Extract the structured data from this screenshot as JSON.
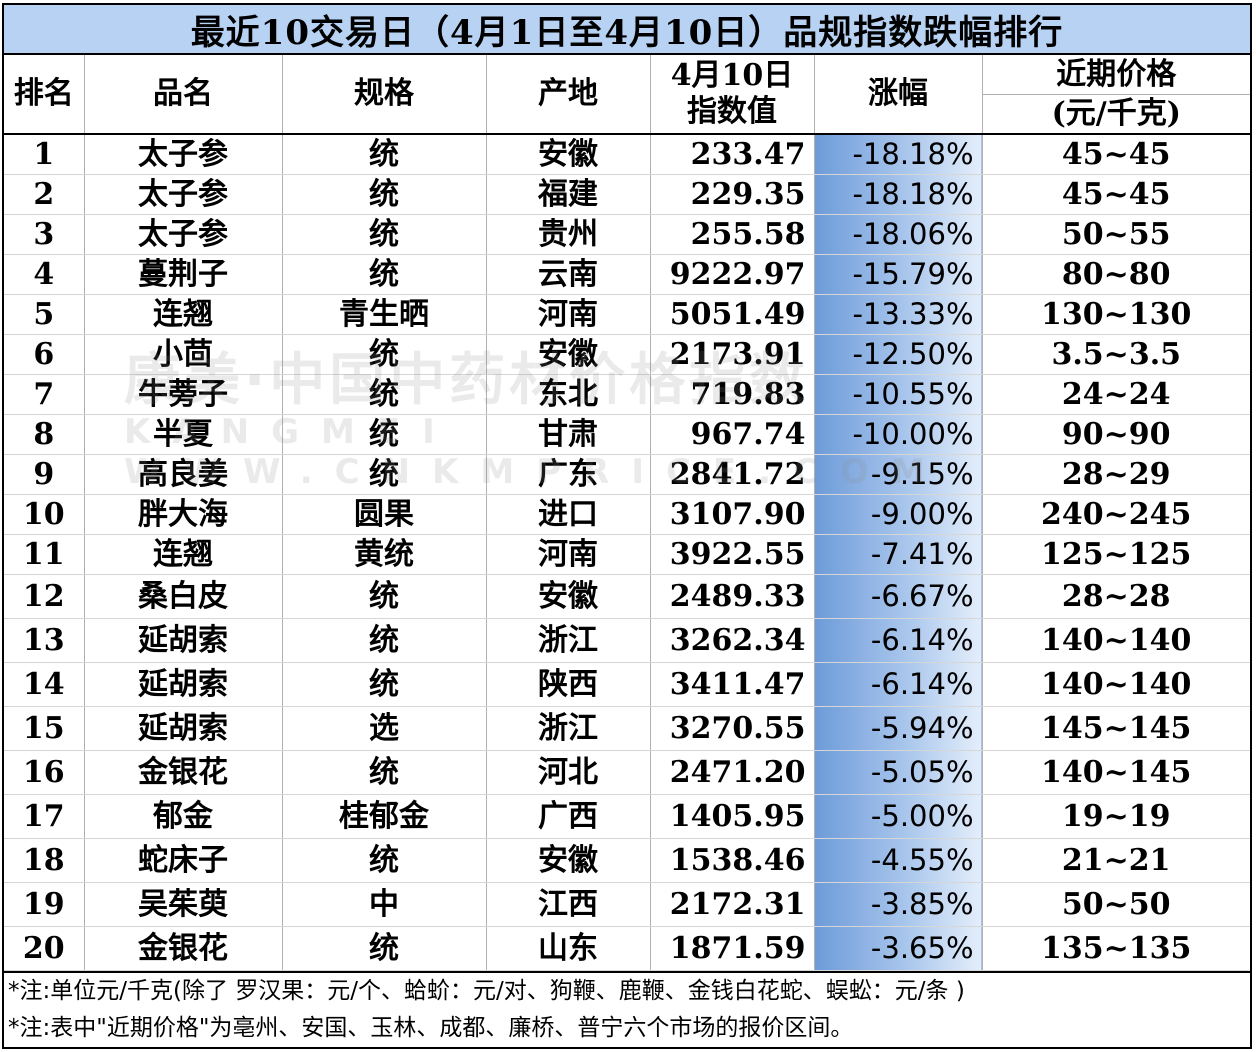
{
  "title": "最近10交易日（4月1日至4月10日）品规指数跌幅排行",
  "headers": {
    "rank": "排名",
    "name": "品名",
    "spec": "规格",
    "origin": "产地",
    "index_line1": "4月10日",
    "index_line2": "指数值",
    "change": "涨幅",
    "price_line1": "近期价格",
    "price_line2": "(元/千克)"
  },
  "rows": [
    {
      "rank": "1",
      "name": "太子参",
      "spec": "统",
      "origin": "安徽",
      "index": "233.47",
      "change": "-18.18%",
      "price": "45~45"
    },
    {
      "rank": "2",
      "name": "太子参",
      "spec": "统",
      "origin": "福建",
      "index": "229.35",
      "change": "-18.18%",
      "price": "45~45"
    },
    {
      "rank": "3",
      "name": "太子参",
      "spec": "统",
      "origin": "贵州",
      "index": "255.58",
      "change": "-18.06%",
      "price": "50~55"
    },
    {
      "rank": "4",
      "name": "蔓荆子",
      "spec": "统",
      "origin": "云南",
      "index": "9222.97",
      "change": "-15.79%",
      "price": "80~80"
    },
    {
      "rank": "5",
      "name": "连翘",
      "spec": "青生晒",
      "origin": "河南",
      "index": "5051.49",
      "change": "-13.33%",
      "price": "130~130"
    },
    {
      "rank": "6",
      "name": "小茴",
      "spec": "统",
      "origin": "安徽",
      "index": "2173.91",
      "change": "-12.50%",
      "price": "3.5~3.5"
    },
    {
      "rank": "7",
      "name": "牛蒡子",
      "spec": "统",
      "origin": "东北",
      "index": "719.83",
      "change": "-10.55%",
      "price": "24~24"
    },
    {
      "rank": "8",
      "name": "半夏",
      "spec": "统",
      "origin": "甘肃",
      "index": "967.74",
      "change": "-10.00%",
      "price": "90~90"
    },
    {
      "rank": "9",
      "name": "高良姜",
      "spec": "统",
      "origin": "广东",
      "index": "2841.72",
      "change": "-9.15%",
      "price": "28~29"
    },
    {
      "rank": "10",
      "name": "胖大海",
      "spec": "圆果",
      "origin": "进口",
      "index": "3107.90",
      "change": "-9.00%",
      "price": "240~245"
    },
    {
      "rank": "11",
      "name": "连翘",
      "spec": "黄统",
      "origin": "河南",
      "index": "3922.55",
      "change": "-7.41%",
      "price": "125~125"
    },
    {
      "rank": "12",
      "name": "桑白皮",
      "spec": "统",
      "origin": "安徽",
      "index": "2489.33",
      "change": "-6.67%",
      "price": "28~28"
    },
    {
      "rank": "13",
      "name": "延胡索",
      "spec": "统",
      "origin": "浙江",
      "index": "3262.34",
      "change": "-6.14%",
      "price": "140~140"
    },
    {
      "rank": "14",
      "name": "延胡索",
      "spec": "统",
      "origin": "陕西",
      "index": "3411.47",
      "change": "-6.14%",
      "price": "140~140"
    },
    {
      "rank": "15",
      "name": "延胡索",
      "spec": "选",
      "origin": "浙江",
      "index": "3270.55",
      "change": "-5.94%",
      "price": "145~145"
    },
    {
      "rank": "16",
      "name": "金银花",
      "spec": "统",
      "origin": "河北",
      "index": "2471.20",
      "change": "-5.05%",
      "price": "140~145"
    },
    {
      "rank": "17",
      "name": "郁金",
      "spec": "桂郁金",
      "origin": "广西",
      "index": "1405.95",
      "change": "-5.00%",
      "price": "19~19"
    },
    {
      "rank": "18",
      "name": "蛇床子",
      "spec": "统",
      "origin": "安徽",
      "index": "1538.46",
      "change": "-4.55%",
      "price": "21~21"
    },
    {
      "rank": "19",
      "name": "吴茱萸",
      "spec": "中",
      "origin": "江西",
      "index": "2172.31",
      "change": "-3.85%",
      "price": "50~50"
    },
    {
      "rank": "20",
      "name": "金银花",
      "spec": "统",
      "origin": "山东",
      "index": "1871.59",
      "change": "-3.65%",
      "price": "135~135"
    }
  ],
  "notes": [
    "*注:单位元/千克(除了 罗汉果：元/个、蛤蚧：元/对、狗鞭、鹿鞭、金钱白花蛇、蜈蚣：元/条 )",
    "*注:表中\"近期价格\"为亳州、安国、玉林、成都、廉桥、普宁六个市场的报价区间。"
  ],
  "watermark": {
    "line1": "康美·中国中药材价格指数",
    "line2": "KANGMEI WWW.CNKMPRICE.COM"
  },
  "colors": {
    "title_bg": "#b7d2f3",
    "bar_dark": "#6d9bd9",
    "bar_light": "#e4eefb"
  }
}
